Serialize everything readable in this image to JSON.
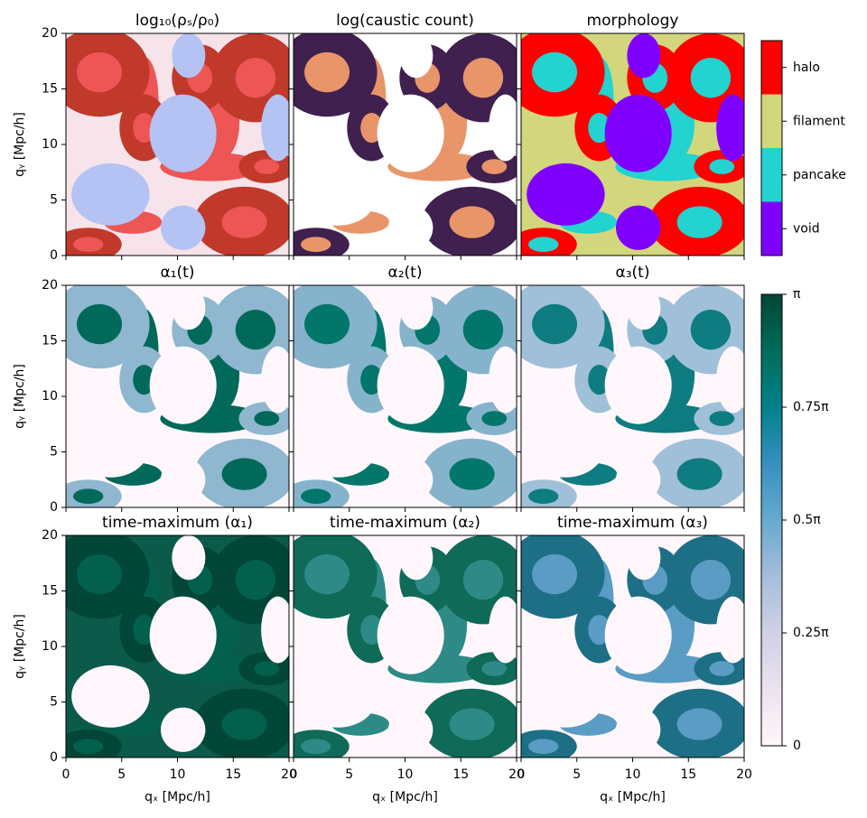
{
  "chart_data": [
    {
      "type": "image",
      "title": "log₁₀(ρₛ/ρ₀)",
      "ylabel": "qᵧ [Mpc/h]",
      "xlim": [
        0,
        20
      ],
      "ylim": [
        0,
        20
      ],
      "yticks": [
        0,
        5,
        10,
        15,
        20
      ],
      "colors": [
        "#f6e4ea",
        "#c0392b",
        "#b4c2f4",
        "#ee5555"
      ]
    },
    {
      "type": "image",
      "title": "log(caustic count)",
      "xlim": [
        0,
        20
      ],
      "ylim": [
        0,
        20
      ],
      "colors": [
        "#ffffff",
        "#40204f",
        "#ffffff",
        "#e9956a"
      ]
    },
    {
      "type": "image",
      "title": "morphology",
      "xlim": [
        0,
        20
      ],
      "ylim": [
        0,
        20
      ],
      "colors": [
        "#d2d67c",
        "#ff0000",
        "#8000ff",
        "#22d3d0"
      ]
    },
    {
      "type": "image",
      "title": "α₁(t)",
      "ylabel": "qᵧ [Mpc/h]",
      "xlim": [
        0,
        20
      ],
      "ylim": [
        0,
        20
      ],
      "yticks": [
        0,
        5,
        10,
        15,
        20
      ],
      "colors": [
        "#fff7fb",
        "#8fb7cf",
        "#fff7fb",
        "#01695a"
      ]
    },
    {
      "type": "image",
      "title": "α₂(t)",
      "xlim": [
        0,
        20
      ],
      "ylim": [
        0,
        20
      ],
      "colors": [
        "#fff7fb",
        "#86b3cc",
        "#fff7fb",
        "#02766a"
      ]
    },
    {
      "type": "image",
      "title": "α₃(t)",
      "xlim": [
        0,
        20
      ],
      "ylim": [
        0,
        20
      ],
      "colors": [
        "#fff7fb",
        "#9fc0d8",
        "#fff7fb",
        "#0e7c80"
      ]
    },
    {
      "type": "image",
      "title": "time-maximum (α₁)",
      "xlabel": "qₓ [Mpc/h]",
      "ylabel": "qᵧ [Mpc/h]",
      "xlim": [
        0,
        20
      ],
      "ylim": [
        0,
        20
      ],
      "xticks": [
        0,
        5,
        10,
        15,
        20
      ],
      "yticks": [
        0,
        5,
        10,
        15,
        20
      ],
      "colors": [
        "#0b5a4a",
        "#014636",
        "#fff7fb",
        "#02604d"
      ]
    },
    {
      "type": "image",
      "title": "time-maximum (α₂)",
      "xlabel": "qₓ [Mpc/h]",
      "xlim": [
        0,
        20
      ],
      "ylim": [
        0,
        20
      ],
      "xticks": [
        0,
        5,
        10,
        15,
        20
      ],
      "colors": [
        "#fff7fb",
        "#0f6a58",
        "#fff7fb",
        "#2d8a86"
      ]
    },
    {
      "type": "image",
      "title": "time-maximum (α₃)",
      "xlabel": "qₓ [Mpc/h]",
      "xlim": [
        0,
        20
      ],
      "ylim": [
        0,
        20
      ],
      "xticks": [
        0,
        5,
        10,
        15,
        20
      ],
      "colors": [
        "#fff7fb",
        "#1d6f86",
        "#fff7fb",
        "#5a9cc4"
      ]
    }
  ],
  "colorbars": [
    {
      "type": "categorical",
      "categories": [
        "void",
        "pancake",
        "filament",
        "halo"
      ],
      "colors": [
        "#8000ff",
        "#22d3d0",
        "#d2d67c",
        "#ff0000"
      ]
    },
    {
      "type": "continuous",
      "lim": [
        0,
        1
      ],
      "ticks": [
        0,
        {
          "value": 0.25,
          "label": "0.25π"
        },
        {
          "value": 0.5,
          "label": "0.5π"
        },
        {
          "value": 0.75,
          "label": "0.75π"
        },
        {
          "value": 1,
          "label": "π"
        }
      ],
      "colors": [
        "#fff7fb",
        "#ece2f0",
        "#d0d1e6",
        "#a6bddb",
        "#67a9cf",
        "#3690c0",
        "#02818a",
        "#016c59",
        "#014636"
      ]
    }
  ]
}
